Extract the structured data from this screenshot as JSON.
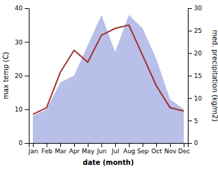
{
  "chart_data": {
    "type": "line",
    "xlabel": "date (month)",
    "ylabel": "max temp (C)",
    "y2label": "med. precipitation (kg/m2)",
    "categories": [
      "Jan",
      "Feb",
      "Mar",
      "Apr",
      "May",
      "Jun",
      "Jul",
      "Aug",
      "Sep",
      "Oct",
      "Nov",
      "Dec"
    ],
    "series": [
      {
        "type": "area",
        "color": "#b8bfe8",
        "values": [
          8.0,
          10.0,
          18.0,
          20.0,
          29.0,
          38.0,
          27.0,
          38.0,
          34.0,
          25.0,
          13.0,
          10.0
        ]
      },
      {
        "type": "line",
        "color": "#a03030",
        "values": [
          8.5,
          10.5,
          21.0,
          27.5,
          24.0,
          32.0,
          34.0,
          35.0,
          26.0,
          17.0,
          10.5,
          9.5
        ]
      }
    ],
    "ylim": [
      0,
      40
    ],
    "yticks": [
      0,
      10,
      20,
      30,
      40
    ],
    "y2lim": [
      0,
      30
    ],
    "y2ticks": [
      0,
      5,
      10,
      15,
      20,
      25,
      30
    ]
  }
}
